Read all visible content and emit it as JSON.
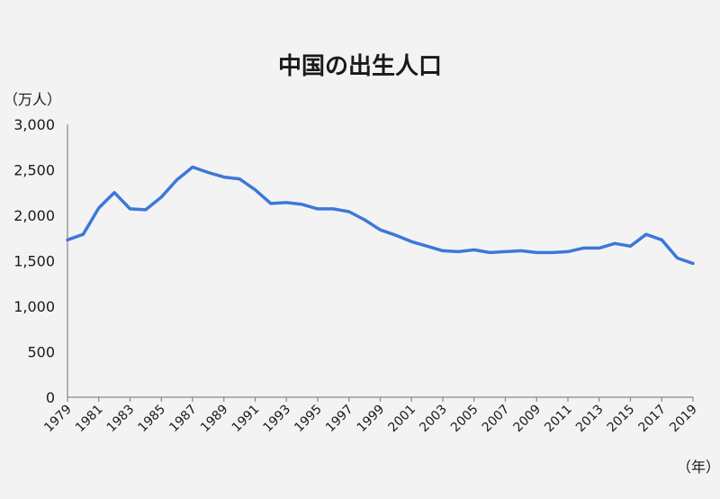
{
  "chart_data": {
    "type": "line",
    "title": "中国の出生人口",
    "ylabel": "（万人）",
    "xlabel": "（年）",
    "ylim": [
      0,
      3000
    ],
    "grid": false,
    "yticks": [
      {
        "value": 0,
        "label": "0"
      },
      {
        "value": 500,
        "label": "500"
      },
      {
        "value": 1000,
        "label": "1,000"
      },
      {
        "value": 1500,
        "label": "1,500"
      },
      {
        "value": 2000,
        "label": "2,000"
      },
      {
        "value": 2500,
        "label": "2,500"
      },
      {
        "value": 3000,
        "label": "3,000"
      }
    ],
    "xtick_labels": [
      "1979",
      "1981",
      "1983",
      "1985",
      "1987",
      "1989",
      "1991",
      "1993",
      "1995",
      "1997",
      "1999",
      "2001",
      "2003",
      "2005",
      "2007",
      "2009",
      "2011",
      "2013",
      "2015",
      "2017",
      "2019"
    ],
    "x": [
      1979,
      1980,
      1981,
      1982,
      1983,
      1984,
      1985,
      1986,
      1987,
      1988,
      1989,
      1990,
      1991,
      1992,
      1993,
      1994,
      1995,
      1996,
      1997,
      1998,
      1999,
      2000,
      2001,
      2002,
      2003,
      2004,
      2005,
      2006,
      2007,
      2008,
      2009,
      2010,
      2011,
      2012,
      2013,
      2014,
      2015,
      2016,
      2017,
      2018,
      2019
    ],
    "series": [
      {
        "color": "#3c78d8",
        "values": [
          1730,
          1790,
          2080,
          2250,
          2070,
          2060,
          2200,
          2390,
          2530,
          2470,
          2420,
          2400,
          2280,
          2130,
          2140,
          2120,
          2070,
          2070,
          2040,
          1950,
          1840,
          1780,
          1710,
          1660,
          1610,
          1600,
          1620,
          1590,
          1600,
          1610,
          1590,
          1590,
          1600,
          1640,
          1640,
          1690,
          1660,
          1790,
          1730,
          1530,
          1470
        ]
      }
    ]
  }
}
